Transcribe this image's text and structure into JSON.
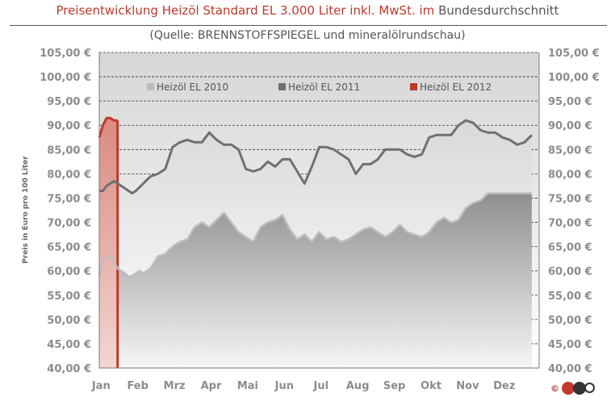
{
  "header": {
    "title_red": "Preisentwicklung Heizöl Standard EL 3.000 Liter inkl. MwSt. im",
    "title_gray": "Bundesdurchschnitt",
    "subtitle": "(Quelle: BRENNSTOFFSPIEGEL  und mineralölrundschau)"
  },
  "logo": {
    "symbol": "©",
    "icon": "company-logo-icon"
  },
  "colors": {
    "series_2010": "#bdbdbd",
    "series_2011": "#707070",
    "series_2012": "#c0392b",
    "background": "#ffffff"
  },
  "chart_data": {
    "type": "area",
    "title": "Preisentwicklung Heizöl Standard EL 3.000 Liter inkl. MwSt. im Bundesdurchschnitt",
    "subtitle": "(Quelle: BRENNSTOFFSPIEGEL  und mineralölrundschau)",
    "ylabel": "Preis in Euro pro 100 Liter",
    "xlabel": "",
    "ylim": [
      40,
      105
    ],
    "y_ticks": [
      105,
      100,
      95,
      90,
      85,
      80,
      75,
      70,
      65,
      60,
      55,
      50,
      45,
      40
    ],
    "y_tick_labels": [
      "105,00 €",
      "100,00 €",
      "95,00 €",
      "90,00 €",
      "85,00 €",
      "80,00 €",
      "75,00 €",
      "70,00 €",
      "65,00 €",
      "60,00 €",
      "55,00 €",
      "50,00 €",
      "45,00 €",
      "40,00 €"
    ],
    "categories": [
      "Jan",
      "Feb",
      "Mrz",
      "Apr",
      "Mai",
      "Jun",
      "Jul",
      "Aug",
      "Sep",
      "Okt",
      "Nov",
      "Dez"
    ],
    "grid": true,
    "legend_position": "top",
    "series": [
      {
        "name": "Heizöl EL 2010",
        "x": [
          0.0,
          0.1,
          0.2,
          0.3,
          0.4,
          0.5,
          0.6,
          0.7,
          0.8,
          0.9,
          1.0,
          1.1,
          1.2,
          1.4,
          1.6,
          1.8,
          2.0,
          2.2,
          2.4,
          2.6,
          2.8,
          3.0,
          3.2,
          3.4,
          3.6,
          3.8,
          4.0,
          4.2,
          4.4,
          4.6,
          4.8,
          5.0,
          5.2,
          5.4,
          5.6,
          5.8,
          6.0,
          6.2,
          6.4,
          6.6,
          6.8,
          7.0,
          7.2,
          7.4,
          7.6,
          7.8,
          8.0,
          8.2,
          8.4,
          8.6,
          8.8,
          9.0,
          9.2,
          9.4,
          9.6,
          9.8,
          10.0,
          10.2,
          10.4,
          10.6,
          10.8,
          11.0,
          11.2,
          11.4,
          11.6,
          11.8
        ],
        "values": [
          59.0,
          62.0,
          63.0,
          63.0,
          62.0,
          60.5,
          60.0,
          59.5,
          58.8,
          59.0,
          59.5,
          60.0,
          59.5,
          60.5,
          63.0,
          63.5,
          65.0,
          66.0,
          66.5,
          69.0,
          70.0,
          69.0,
          70.5,
          72.0,
          70.0,
          68.0,
          67.0,
          66.0,
          69.0,
          70.0,
          70.5,
          71.5,
          68.5,
          66.5,
          67.5,
          66.0,
          68.0,
          66.5,
          67.0,
          66.0,
          66.5,
          67.5,
          68.5,
          69.0,
          68.0,
          67.0,
          68.0,
          69.5,
          68.0,
          67.5,
          67.0,
          68.0,
          70.0,
          71.0,
          70.0,
          70.5,
          73.0,
          74.0,
          74.5,
          76.0,
          76.0,
          76.0,
          76.0,
          76.0,
          76.0,
          76.0
        ]
      },
      {
        "name": "Heizöl EL 2011",
        "x": [
          0.0,
          0.1,
          0.2,
          0.3,
          0.4,
          0.5,
          0.6,
          0.7,
          0.8,
          0.9,
          1.0,
          1.2,
          1.4,
          1.6,
          1.8,
          2.0,
          2.2,
          2.4,
          2.6,
          2.8,
          3.0,
          3.2,
          3.4,
          3.6,
          3.8,
          4.0,
          4.2,
          4.4,
          4.6,
          4.8,
          5.0,
          5.2,
          5.4,
          5.6,
          5.8,
          6.0,
          6.2,
          6.4,
          6.6,
          6.8,
          7.0,
          7.2,
          7.4,
          7.6,
          7.8,
          8.0,
          8.2,
          8.4,
          8.6,
          8.8,
          9.0,
          9.2,
          9.4,
          9.6,
          9.8,
          10.0,
          10.2,
          10.4,
          10.6,
          10.8,
          11.0,
          11.2,
          11.4,
          11.6,
          11.8
        ],
        "values": [
          76.5,
          76.5,
          77.5,
          78.0,
          78.5,
          78.0,
          77.5,
          77.0,
          76.5,
          76.0,
          76.5,
          78.0,
          79.5,
          80.0,
          81.0,
          85.5,
          86.5,
          87.0,
          86.5,
          86.5,
          88.5,
          87.0,
          86.0,
          86.0,
          85.0,
          81.0,
          80.5,
          81.0,
          82.5,
          81.5,
          83.0,
          83.0,
          80.5,
          78.0,
          81.5,
          85.5,
          85.5,
          85.0,
          84.0,
          83.0,
          80.0,
          82.0,
          82.0,
          83.0,
          85.0,
          85.0,
          85.0,
          84.0,
          83.5,
          84.0,
          87.5,
          88.0,
          88.0,
          88.0,
          90.0,
          91.0,
          90.5,
          89.0,
          88.5,
          88.5,
          87.5,
          87.0,
          86.0,
          86.5,
          88.0
        ]
      },
      {
        "name": "Heizöl EL 2012",
        "x": [
          0.0,
          0.1,
          0.2,
          0.3,
          0.4,
          0.5
        ],
        "values": [
          87.5,
          90.0,
          91.5,
          91.5,
          91.0,
          91.0
        ]
      }
    ]
  }
}
